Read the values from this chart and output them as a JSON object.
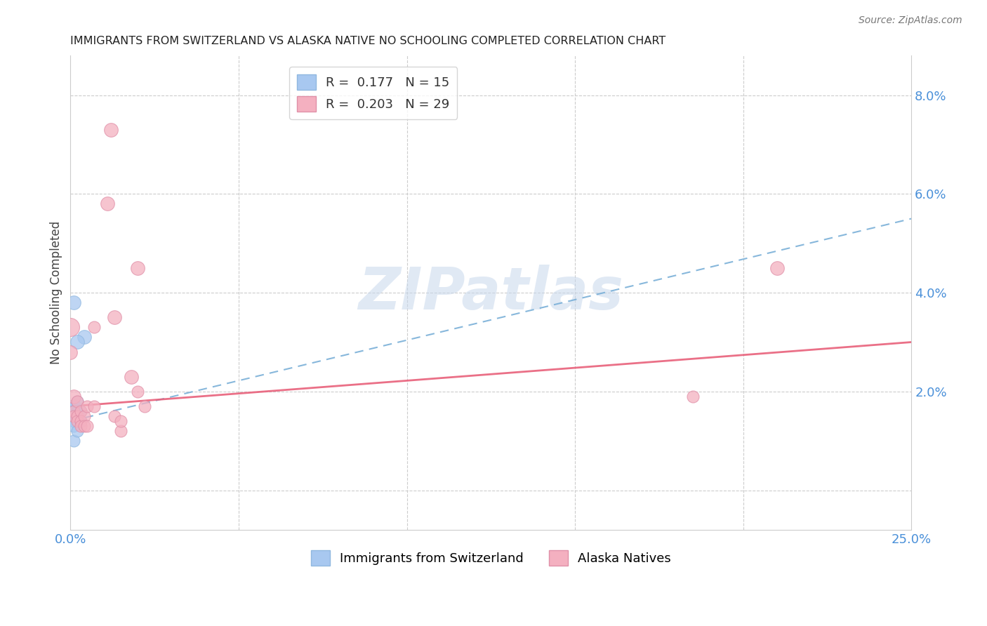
{
  "title": "IMMIGRANTS FROM SWITZERLAND VS ALASKA NATIVE NO SCHOOLING COMPLETED CORRELATION CHART",
  "source": "Source: ZipAtlas.com",
  "ylabel": "No Schooling Completed",
  "right_yticks": [
    "2.0%",
    "4.0%",
    "6.0%",
    "8.0%"
  ],
  "right_ytick_vals": [
    0.02,
    0.04,
    0.06,
    0.08
  ],
  "grid_ytick_vals": [
    0.0,
    0.02,
    0.04,
    0.06,
    0.08
  ],
  "xmin": 0.0,
  "xmax": 0.25,
  "ymin": -0.008,
  "ymax": 0.088,
  "blue_color": "#a8c8f0",
  "pink_color": "#f4b0c0",
  "blue_line_color": "#7ab0d8",
  "pink_line_color": "#e8607a",
  "watermark": "ZIPatlas",
  "swiss_points": [
    [
      0.0,
      0.016,
      400
    ],
    [
      0.001,
      0.017,
      200
    ],
    [
      0.002,
      0.018,
      150
    ],
    [
      0.001,
      0.016,
      150
    ],
    [
      0.002,
      0.016,
      150
    ],
    [
      0.001,
      0.014,
      150
    ],
    [
      0.003,
      0.016,
      150
    ],
    [
      0.002,
      0.015,
      150
    ],
    [
      0.001,
      0.013,
      150
    ],
    [
      0.001,
      0.01,
      150
    ],
    [
      0.002,
      0.012,
      150
    ],
    [
      0.003,
      0.014,
      150
    ],
    [
      0.004,
      0.031,
      200
    ],
    [
      0.001,
      0.038,
      200
    ],
    [
      0.002,
      0.03,
      200
    ]
  ],
  "alaska_points": [
    [
      0.0,
      0.033,
      350
    ],
    [
      0.0,
      0.028,
      200
    ],
    [
      0.001,
      0.019,
      200
    ],
    [
      0.001,
      0.016,
      150
    ],
    [
      0.001,
      0.015,
      150
    ],
    [
      0.002,
      0.018,
      150
    ],
    [
      0.002,
      0.015,
      150
    ],
    [
      0.002,
      0.014,
      150
    ],
    [
      0.003,
      0.016,
      150
    ],
    [
      0.003,
      0.014,
      150
    ],
    [
      0.003,
      0.013,
      150
    ],
    [
      0.004,
      0.015,
      150
    ],
    [
      0.004,
      0.013,
      150
    ],
    [
      0.005,
      0.017,
      150
    ],
    [
      0.005,
      0.013,
      150
    ],
    [
      0.007,
      0.017,
      150
    ],
    [
      0.007,
      0.033,
      150
    ],
    [
      0.011,
      0.058,
      200
    ],
    [
      0.012,
      0.073,
      200
    ],
    [
      0.013,
      0.035,
      200
    ],
    [
      0.013,
      0.015,
      150
    ],
    [
      0.015,
      0.012,
      150
    ],
    [
      0.015,
      0.014,
      150
    ],
    [
      0.018,
      0.023,
      200
    ],
    [
      0.02,
      0.02,
      150
    ],
    [
      0.02,
      0.045,
      200
    ],
    [
      0.022,
      0.017,
      150
    ],
    [
      0.21,
      0.045,
      200
    ],
    [
      0.185,
      0.019,
      150
    ]
  ],
  "swiss_trend": [
    0.0,
    0.014,
    0.25,
    0.055
  ],
  "alaska_trend": [
    0.0,
    0.017,
    0.25,
    0.03
  ]
}
